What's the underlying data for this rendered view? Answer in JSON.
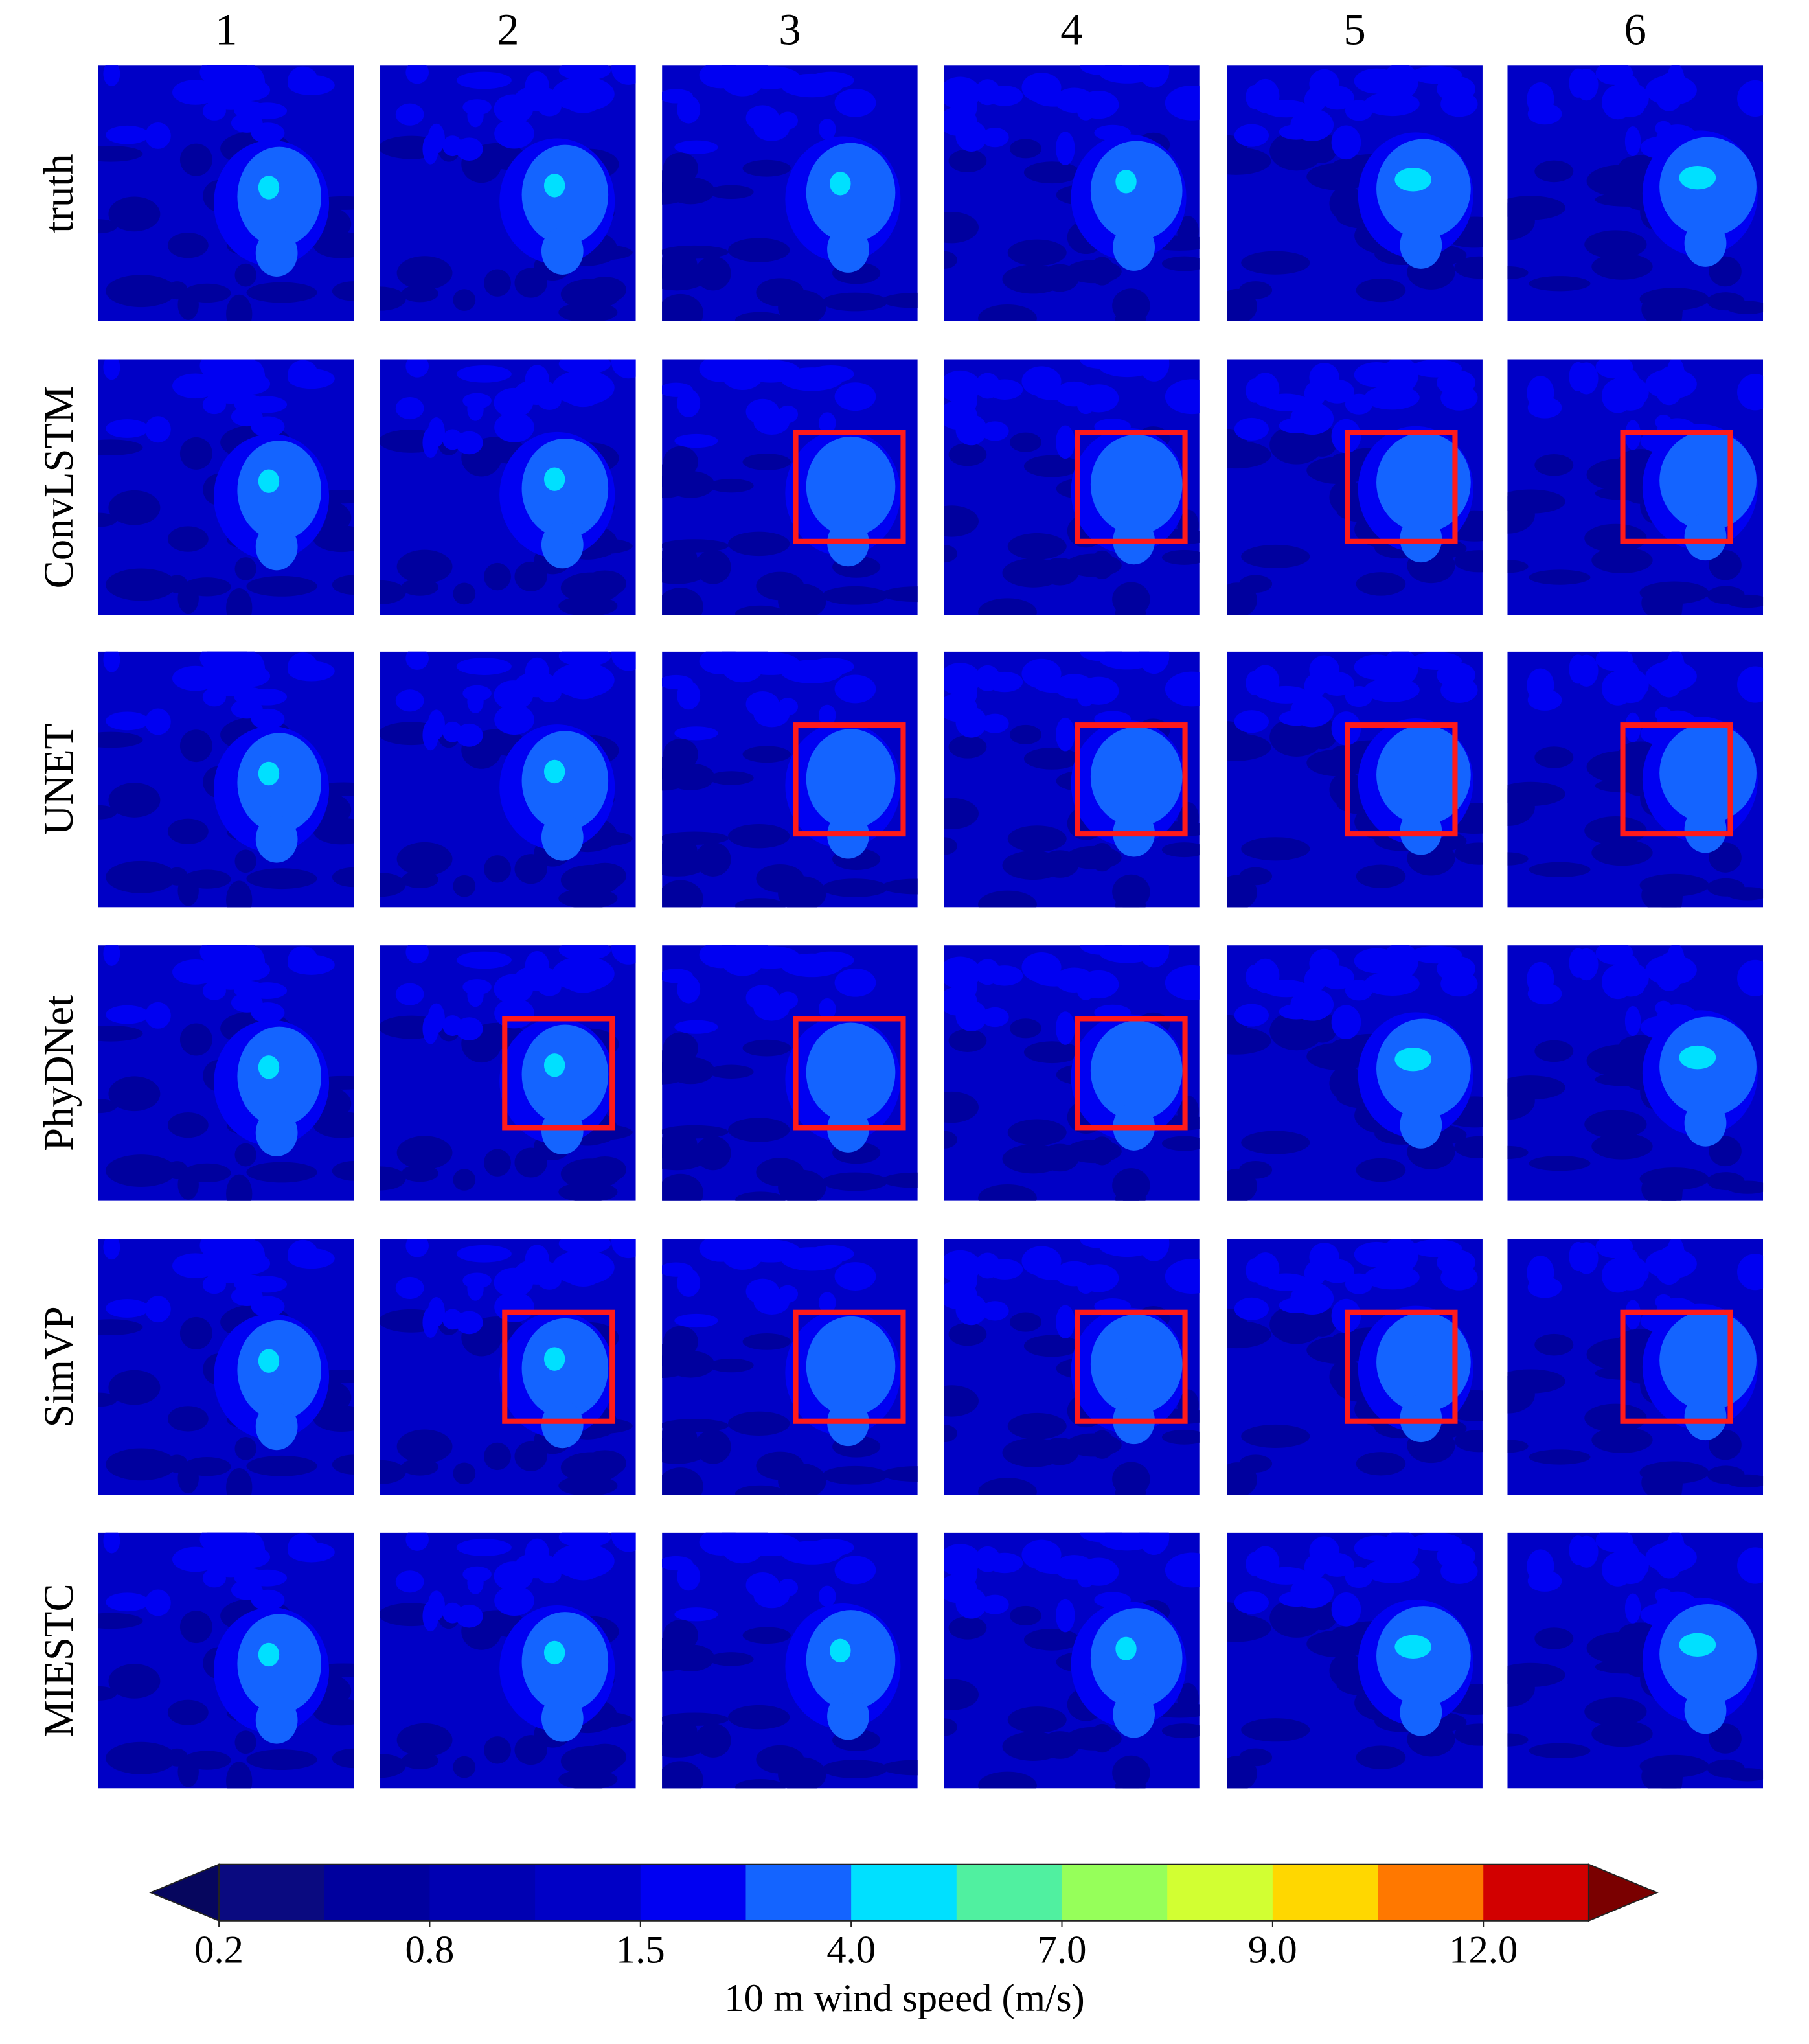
{
  "chart_data": {
    "type": "heatmap-grid",
    "columns": [
      1,
      2,
      3,
      4,
      5,
      6
    ],
    "rows": [
      {
        "name": "truth",
        "boxed": []
      },
      {
        "name": "ConvLSTM",
        "boxed": [
          3,
          4,
          5,
          6
        ]
      },
      {
        "name": "UNET",
        "boxed": [
          3,
          4,
          5,
          6
        ]
      },
      {
        "name": "PhyDNet",
        "boxed": [
          2,
          3,
          4
        ]
      },
      {
        "name": "SimVP",
        "boxed": [
          2,
          3,
          4,
          5,
          6
        ]
      },
      {
        "name": "MIESTC",
        "boxed": []
      }
    ],
    "box_color": "#ff1a1a",
    "colorbar": {
      "label": "10 m wind speed (m/s)",
      "under_color": "#06065e",
      "over_color": "#7a0000",
      "colors": [
        "#0a0a80",
        "#00009e",
        "#0000b2",
        "#0000c6",
        "#0000f2",
        "#1464ff",
        "#00e0ff",
        "#50f0a0",
        "#96ff5a",
        "#d2ff32",
        "#ffd700",
        "#ff7800",
        "#d20000"
      ],
      "ticks": [
        0.2,
        0.8,
        1.5,
        {
          "value": 4,
          "label": "4.0"
        },
        {
          "value": 7,
          "label": "7.0"
        },
        {
          "value": 9,
          "label": "9.0"
        },
        {
          "value": 12,
          "label": "12.0"
        }
      ]
    }
  }
}
